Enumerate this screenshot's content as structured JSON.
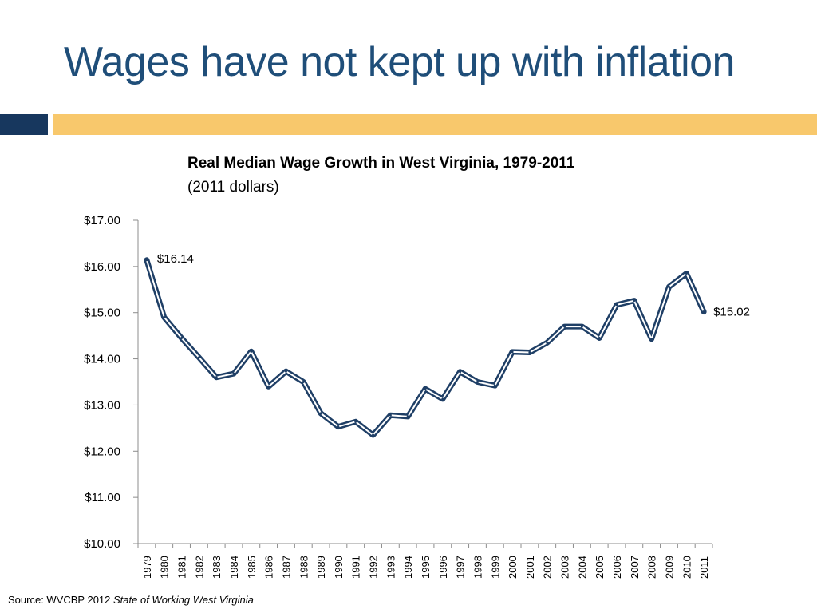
{
  "slide": {
    "title": "Wages have not kept up with inflation",
    "source_prefix": "Source: WVCBP 2012 ",
    "source_title": "State of Working West Virginia"
  },
  "colors": {
    "title": "#1f4e79",
    "accent_dark": "#17375e",
    "accent_gold": "#f8c86c",
    "series_line": "#1f3f66"
  },
  "chart_data": {
    "type": "line",
    "title": "Real Median Wage Growth in West Virginia, 1979-2011",
    "subtitle": "(2011 dollars)",
    "xlabel": "",
    "ylabel": "",
    "ylim": [
      10,
      17
    ],
    "y_ticks": [
      "$10.00",
      "$11.00",
      "$12.00",
      "$13.00",
      "$14.00",
      "$15.00",
      "$16.00",
      "$17.00"
    ],
    "grid": false,
    "legend": "none",
    "categories": [
      "1979",
      "1980",
      "1981",
      "1982",
      "1983",
      "1984",
      "1985",
      "1986",
      "1987",
      "1988",
      "1989",
      "1990",
      "1991",
      "1992",
      "1993",
      "1994",
      "1995",
      "1996",
      "1997",
      "1998",
      "1999",
      "2000",
      "2001",
      "2002",
      "2003",
      "2004",
      "2005",
      "2006",
      "2007",
      "2008",
      "2009",
      "2010",
      "2011"
    ],
    "series": [
      {
        "values": [
          16.14,
          14.9,
          14.45,
          14.03,
          13.6,
          13.68,
          14.16,
          13.4,
          13.73,
          13.5,
          12.82,
          12.53,
          12.64,
          12.35,
          12.78,
          12.75,
          13.35,
          13.13,
          13.72,
          13.5,
          13.42,
          14.15,
          14.14,
          14.35,
          14.7,
          14.7,
          14.45,
          15.17,
          15.26,
          14.43,
          15.56,
          15.85,
          15.02
        ]
      }
    ],
    "annotations": [
      {
        "index": 0,
        "text": "$16.14"
      },
      {
        "index": 32,
        "text": "$15.02"
      }
    ]
  }
}
